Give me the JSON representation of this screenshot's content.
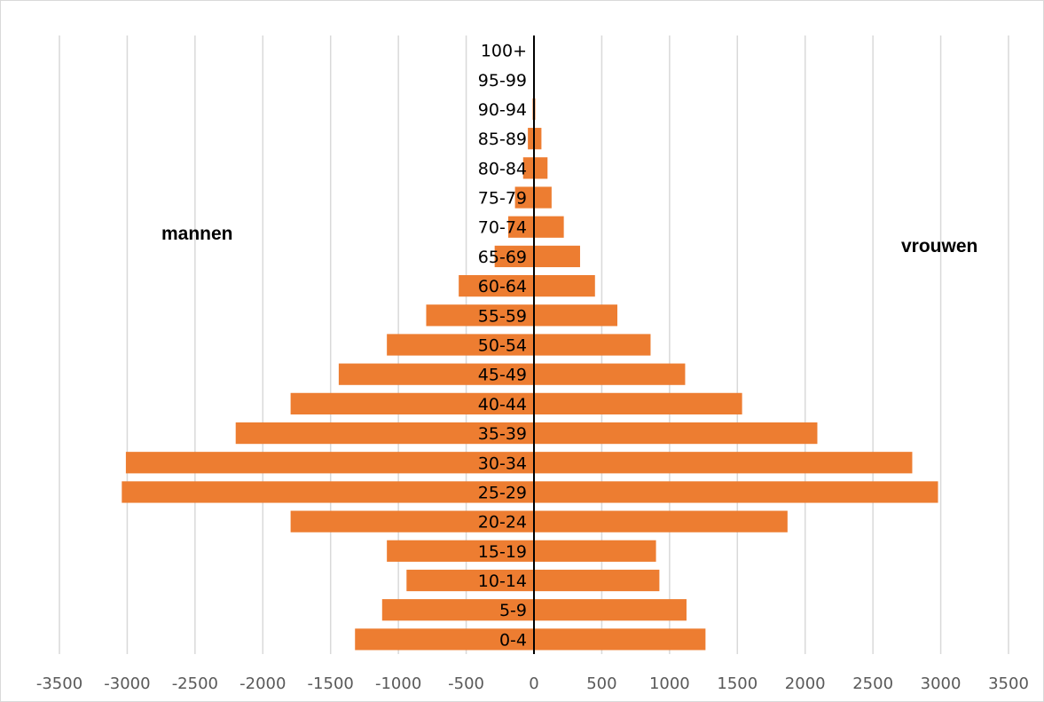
{
  "colors": {
    "bar": "#ED7D31",
    "grid": "#D9D9D9",
    "axis": "#000000"
  },
  "labels": {
    "left": "mannen",
    "right": "vrouwen"
  },
  "chart_data": {
    "type": "bar",
    "orientation": "horizontal",
    "title": "",
    "xlabel": "",
    "ylabel": "",
    "xlim": [
      -3500,
      3500
    ],
    "x_ticks": [
      -3500,
      -3000,
      -2500,
      -2000,
      -1500,
      -1000,
      -500,
      0,
      500,
      1000,
      1500,
      2000,
      2500,
      3000,
      3500
    ],
    "grid": "vertical",
    "legend": "none",
    "categories": [
      "0-4",
      "5-9",
      "10-14",
      "15-19",
      "20-24",
      "25-29",
      "30-34",
      "35-39",
      "40-44",
      "45-49",
      "50-54",
      "55-59",
      "60-64",
      "65-69",
      "70-74",
      "75-79",
      "80-84",
      "85-89",
      "90-94",
      "95-99",
      "100+"
    ],
    "series": [
      {
        "values": [
          -1320,
          -1120,
          -940,
          -1085,
          -1795,
          -3040,
          -3010,
          -2200,
          -1795,
          -1440,
          -1085,
          -795,
          -555,
          -290,
          -190,
          -140,
          -80,
          -45,
          -10,
          0,
          0
        ]
      },
      {
        "values": [
          1265,
          1125,
          925,
          900,
          1870,
          2980,
          2790,
          2090,
          1535,
          1115,
          860,
          615,
          450,
          340,
          220,
          130,
          100,
          55,
          10,
          0,
          0
        ]
      }
    ]
  }
}
